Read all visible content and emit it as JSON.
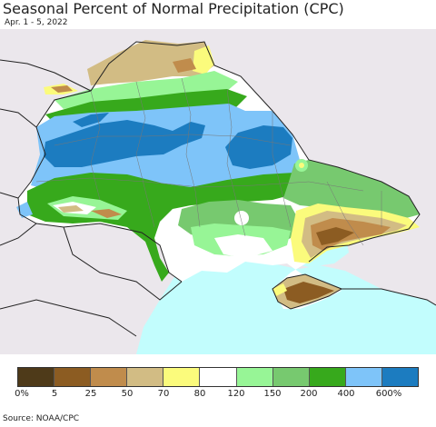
{
  "title": "Seasonal Percent of Normal Precipitation (CPC)",
  "subtitle": "Apr. 1 - 5, 2022",
  "source": "Source: NOAA/CPC",
  "legend": {
    "colors": [
      "#4e3a19",
      "#8c5c22",
      "#c08c4c",
      "#d2bc84",
      "#fbfb7c",
      "#ffffff",
      "#97f596",
      "#77c96f",
      "#37a91c",
      "#7ec4f9",
      "#1c7cc0"
    ],
    "ticks": [
      "0%",
      "5",
      "25",
      "50",
      "70",
      "80",
      "120",
      "150",
      "200",
      "400",
      "600%"
    ]
  },
  "map": {
    "background_color": "#ebe7ec",
    "sea_color": "#c2fdfd"
  }
}
